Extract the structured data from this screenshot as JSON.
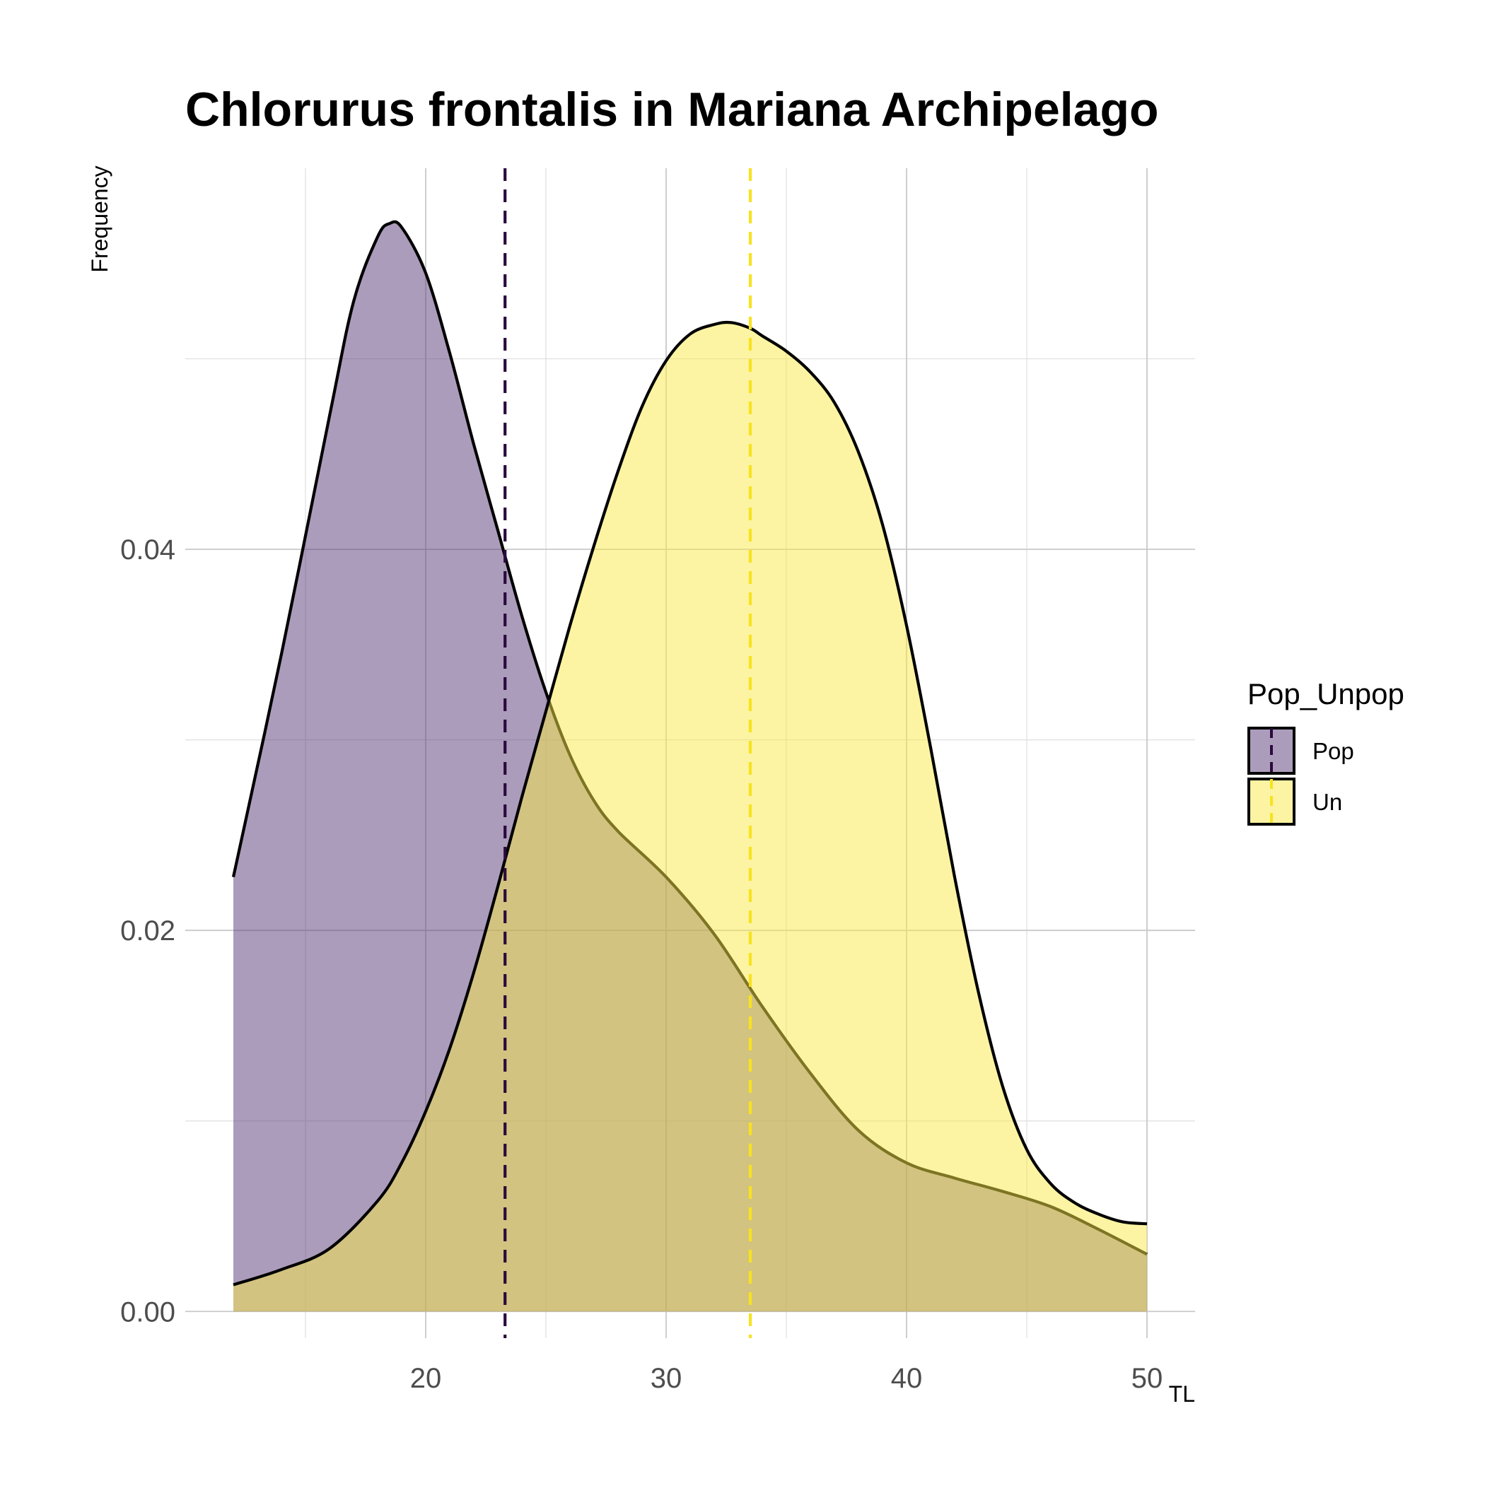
{
  "chart_data": {
    "type": "area",
    "title": "Chlorurus frontalis in Mariana Archipelago",
    "xlabel": "TL",
    "ylabel": "Frequency",
    "xlim": [
      10,
      52
    ],
    "ylim": [
      -0.0014,
      0.06
    ],
    "x_ticks": [
      20,
      30,
      40,
      50
    ],
    "x_tick_labels": [
      "20",
      "30",
      "40",
      "50"
    ],
    "y_ticks": [
      0.0,
      0.02,
      0.04
    ],
    "y_tick_labels": [
      "0.00",
      "0.02",
      "0.04"
    ],
    "y_minor_ticks": [
      0.01,
      0.03,
      0.05
    ],
    "x_minor_ticks": [
      15,
      25,
      35,
      45
    ],
    "grid": true,
    "legend": {
      "title": "Pop_Unpop",
      "position": "right",
      "entries": [
        "Pop",
        "Un"
      ]
    },
    "series": [
      {
        "name": "Pop",
        "fill": "#5a3a78",
        "fill_opacity": 0.5,
        "mean_line_color": "#2b0a3d",
        "mean": 23.3,
        "x": [
          12,
          14,
          16,
          17,
          18,
          18.5,
          19,
          20,
          21,
          22,
          23,
          24,
          25,
          26,
          27,
          28,
          30,
          32,
          34,
          36,
          38,
          40,
          42,
          44,
          46,
          48,
          50
        ],
        "y": [
          0.0228,
          0.0345,
          0.047,
          0.053,
          0.0564,
          0.0571,
          0.0569,
          0.0545,
          0.0503,
          0.0455,
          0.041,
          0.0365,
          0.0325,
          0.0292,
          0.0268,
          0.0252,
          0.0228,
          0.0198,
          0.016,
          0.0125,
          0.0095,
          0.0078,
          0.007,
          0.0063,
          0.0055,
          0.0043,
          0.003
        ]
      },
      {
        "name": "Un",
        "fill": "#f9e945",
        "fill_opacity": 0.5,
        "mean_line_color": "#f7e21f",
        "mean": 33.5,
        "x": [
          12,
          14,
          16,
          18,
          19,
          20,
          21,
          22,
          23,
          24,
          25,
          26,
          27,
          28,
          29,
          30,
          31,
          32,
          32.7,
          33.5,
          34,
          35,
          36,
          37,
          38,
          39,
          40,
          41,
          42,
          43,
          44,
          45,
          46,
          47,
          48,
          49,
          50
        ],
        "y": [
          0.0014,
          0.0022,
          0.0033,
          0.0058,
          0.0078,
          0.0105,
          0.0138,
          0.0178,
          0.0223,
          0.027,
          0.0315,
          0.036,
          0.0402,
          0.0441,
          0.0475,
          0.0499,
          0.0513,
          0.0518,
          0.0519,
          0.0516,
          0.0512,
          0.0504,
          0.0493,
          0.0477,
          0.0451,
          0.0413,
          0.036,
          0.0296,
          0.0228,
          0.0167,
          0.0118,
          0.0085,
          0.0067,
          0.0057,
          0.0051,
          0.0047,
          0.0046
        ]
      }
    ]
  }
}
